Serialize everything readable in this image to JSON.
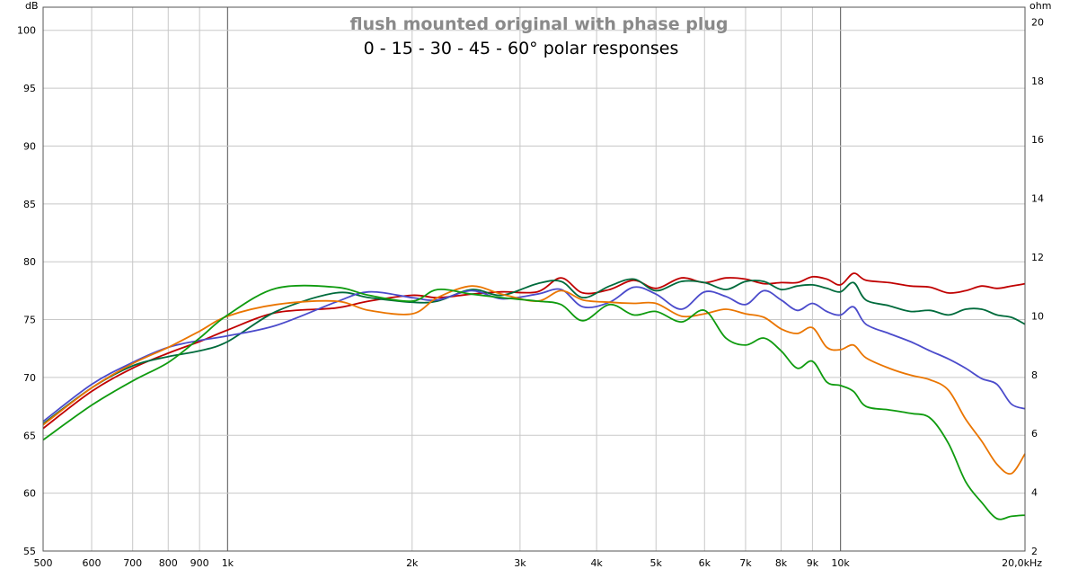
{
  "chart_data": {
    "type": "line",
    "title": "flush mounted original with phase plug",
    "subtitle": "0 - 15 - 30 - 45 - 60° polar responses",
    "ylabel_left": "dB",
    "ylabel_right": "ohm",
    "xscale": "log",
    "xlim": [
      500,
      20000
    ],
    "ylim": [
      55,
      102
    ],
    "ylim_right": [
      2,
      20.5
    ],
    "grid": true,
    "legend": "none",
    "x_ticks": [
      {
        "value": 500,
        "label": "500"
      },
      {
        "value": 600,
        "label": "600"
      },
      {
        "value": 700,
        "label": "700"
      },
      {
        "value": 800,
        "label": "800"
      },
      {
        "value": 900,
        "label": "900"
      },
      {
        "value": 1000,
        "label": "1k"
      },
      {
        "value": 2000,
        "label": "2k"
      },
      {
        "value": 3000,
        "label": "3k"
      },
      {
        "value": 4000,
        "label": "4k"
      },
      {
        "value": 5000,
        "label": "5k"
      },
      {
        "value": 6000,
        "label": "6k"
      },
      {
        "value": 7000,
        "label": "7k"
      },
      {
        "value": 8000,
        "label": "8k"
      },
      {
        "value": 9000,
        "label": "9k"
      },
      {
        "value": 10000,
        "label": "10k"
      },
      {
        "value": 20000,
        "label": "20,0kHz"
      }
    ],
    "y_ticks_left": [
      {
        "value": 55,
        "label": "55"
      },
      {
        "value": 60,
        "label": "60"
      },
      {
        "value": 65,
        "label": "65"
      },
      {
        "value": 70,
        "label": "70"
      },
      {
        "value": 75,
        "label": "75"
      },
      {
        "value": 80,
        "label": "80"
      },
      {
        "value": 85,
        "label": "85"
      },
      {
        "value": 90,
        "label": "90"
      },
      {
        "value": 95,
        "label": "95"
      },
      {
        "value": 100,
        "label": "100"
      }
    ],
    "y_ticks_right": [
      {
        "value": 2,
        "label": "2"
      },
      {
        "value": 4,
        "label": "4"
      },
      {
        "value": 6,
        "label": "6"
      },
      {
        "value": 8,
        "label": "8"
      },
      {
        "value": 10,
        "label": "10"
      },
      {
        "value": 12,
        "label": "12"
      },
      {
        "value": 14,
        "label": "14"
      },
      {
        "value": 16,
        "label": "16"
      },
      {
        "value": 18,
        "label": "18"
      },
      {
        "value": 20,
        "label": "20"
      }
    ],
    "series": [
      {
        "color": "#c00000",
        "x": [
          500,
          600,
          700,
          800,
          900,
          1000,
          1200,
          1500,
          1700,
          2000,
          2200,
          2500,
          2800,
          3200,
          3500,
          3800,
          4200,
          4600,
          5000,
          5500,
          6000,
          6500,
          7000,
          7500,
          8000,
          8500,
          9000,
          9500,
          10000,
          10500,
          11000,
          12000,
          13000,
          14000,
          15000,
          16000,
          17000,
          18000,
          19000,
          20000
        ],
        "y": [
          65.6,
          68.8,
          70.8,
          72.1,
          73.1,
          74.1,
          75.6,
          76.0,
          76.6,
          77.1,
          76.9,
          77.2,
          77.4,
          77.4,
          78.6,
          77.3,
          77.6,
          78.4,
          77.7,
          78.6,
          78.2,
          78.6,
          78.5,
          78.1,
          78.2,
          78.2,
          78.7,
          78.5,
          78.0,
          79.0,
          78.4,
          78.2,
          77.9,
          77.8,
          77.3,
          77.5,
          77.9,
          77.7,
          77.9,
          78.1
        ]
      },
      {
        "color": "#006b3c",
        "x": [
          500,
          600,
          700,
          800,
          900,
          1000,
          1200,
          1500,
          1700,
          2000,
          2200,
          2500,
          2800,
          3200,
          3500,
          3800,
          4200,
          4600,
          5000,
          5500,
          6000,
          6500,
          7000,
          7500,
          8000,
          8500,
          9000,
          9500,
          10000,
          10500,
          11000,
          12000,
          13000,
          14000,
          15000,
          16000,
          17000,
          18000,
          19000,
          20000
        ],
        "y": [
          66.0,
          69.1,
          71.0,
          71.8,
          72.3,
          73.1,
          75.7,
          77.3,
          76.9,
          76.5,
          76.6,
          77.6,
          77.1,
          78.1,
          78.3,
          76.9,
          77.9,
          78.5,
          77.5,
          78.3,
          78.2,
          77.6,
          78.3,
          78.3,
          77.6,
          77.9,
          78.0,
          77.7,
          77.4,
          78.2,
          76.7,
          76.2,
          75.7,
          75.8,
          75.4,
          75.9,
          75.9,
          75.4,
          75.2,
          74.6
        ]
      },
      {
        "color": "#4b4bcb",
        "x": [
          500,
          600,
          700,
          800,
          900,
          1000,
          1200,
          1500,
          1700,
          2000,
          2200,
          2500,
          2800,
          3200,
          3500,
          3800,
          4200,
          4600,
          5000,
          5500,
          6000,
          6500,
          7000,
          7500,
          8000,
          8500,
          9000,
          9500,
          10000,
          10500,
          11000,
          12000,
          13000,
          14000,
          15000,
          16000,
          17000,
          18000,
          19000,
          20000
        ],
        "y": [
          66.2,
          69.4,
          71.3,
          72.6,
          73.2,
          73.6,
          74.5,
          76.5,
          77.4,
          76.9,
          76.7,
          77.5,
          76.8,
          77.2,
          77.6,
          76.1,
          76.5,
          77.8,
          77.2,
          75.9,
          77.4,
          77.0,
          76.3,
          77.5,
          76.7,
          75.8,
          76.4,
          75.7,
          75.4,
          76.1,
          74.6,
          73.8,
          73.1,
          72.3,
          71.6,
          70.8,
          69.9,
          69.4,
          67.7,
          67.3
        ]
      },
      {
        "color": "#ea7500",
        "x": [
          500,
          600,
          700,
          800,
          900,
          1000,
          1200,
          1500,
          1700,
          2000,
          2200,
          2500,
          2800,
          3200,
          3500,
          3800,
          4200,
          4600,
          5000,
          5500,
          6000,
          6500,
          7000,
          7500,
          8000,
          8500,
          9000,
          9500,
          10000,
          10500,
          11000,
          12000,
          13000,
          14000,
          15000,
          16000,
          17000,
          18000,
          19000,
          20000
        ],
        "y": [
          65.9,
          69.1,
          71.2,
          72.6,
          74.0,
          75.3,
          76.3,
          76.6,
          75.8,
          75.5,
          76.9,
          77.9,
          77.2,
          76.6,
          77.5,
          76.7,
          76.5,
          76.4,
          76.4,
          75.3,
          75.5,
          75.9,
          75.5,
          75.2,
          74.2,
          73.8,
          74.3,
          72.6,
          72.4,
          72.8,
          71.7,
          70.8,
          70.2,
          69.8,
          68.9,
          66.4,
          64.5,
          62.5,
          61.7,
          63.4
        ]
      },
      {
        "color": "#0f9b0f",
        "x": [
          500,
          600,
          700,
          800,
          900,
          1000,
          1200,
          1500,
          1700,
          2000,
          2200,
          2500,
          2800,
          3200,
          3500,
          3800,
          4200,
          4600,
          5000,
          5500,
          6000,
          6500,
          7000,
          7500,
          8000,
          8500,
          9000,
          9500,
          10000,
          10500,
          11000,
          12000,
          13000,
          14000,
          15000,
          16000,
          17000,
          18000,
          19000,
          20000
        ],
        "y": [
          64.6,
          67.6,
          69.7,
          71.3,
          73.4,
          75.4,
          77.7,
          77.8,
          77.1,
          76.6,
          77.6,
          77.2,
          76.9,
          76.6,
          76.3,
          74.9,
          76.3,
          75.4,
          75.7,
          74.8,
          75.8,
          73.4,
          72.8,
          73.4,
          72.3,
          70.8,
          71.4,
          69.6,
          69.3,
          68.8,
          67.5,
          67.2,
          66.9,
          66.5,
          64.3,
          61.0,
          59.2,
          57.8,
          58.0,
          58.1
        ]
      }
    ]
  }
}
